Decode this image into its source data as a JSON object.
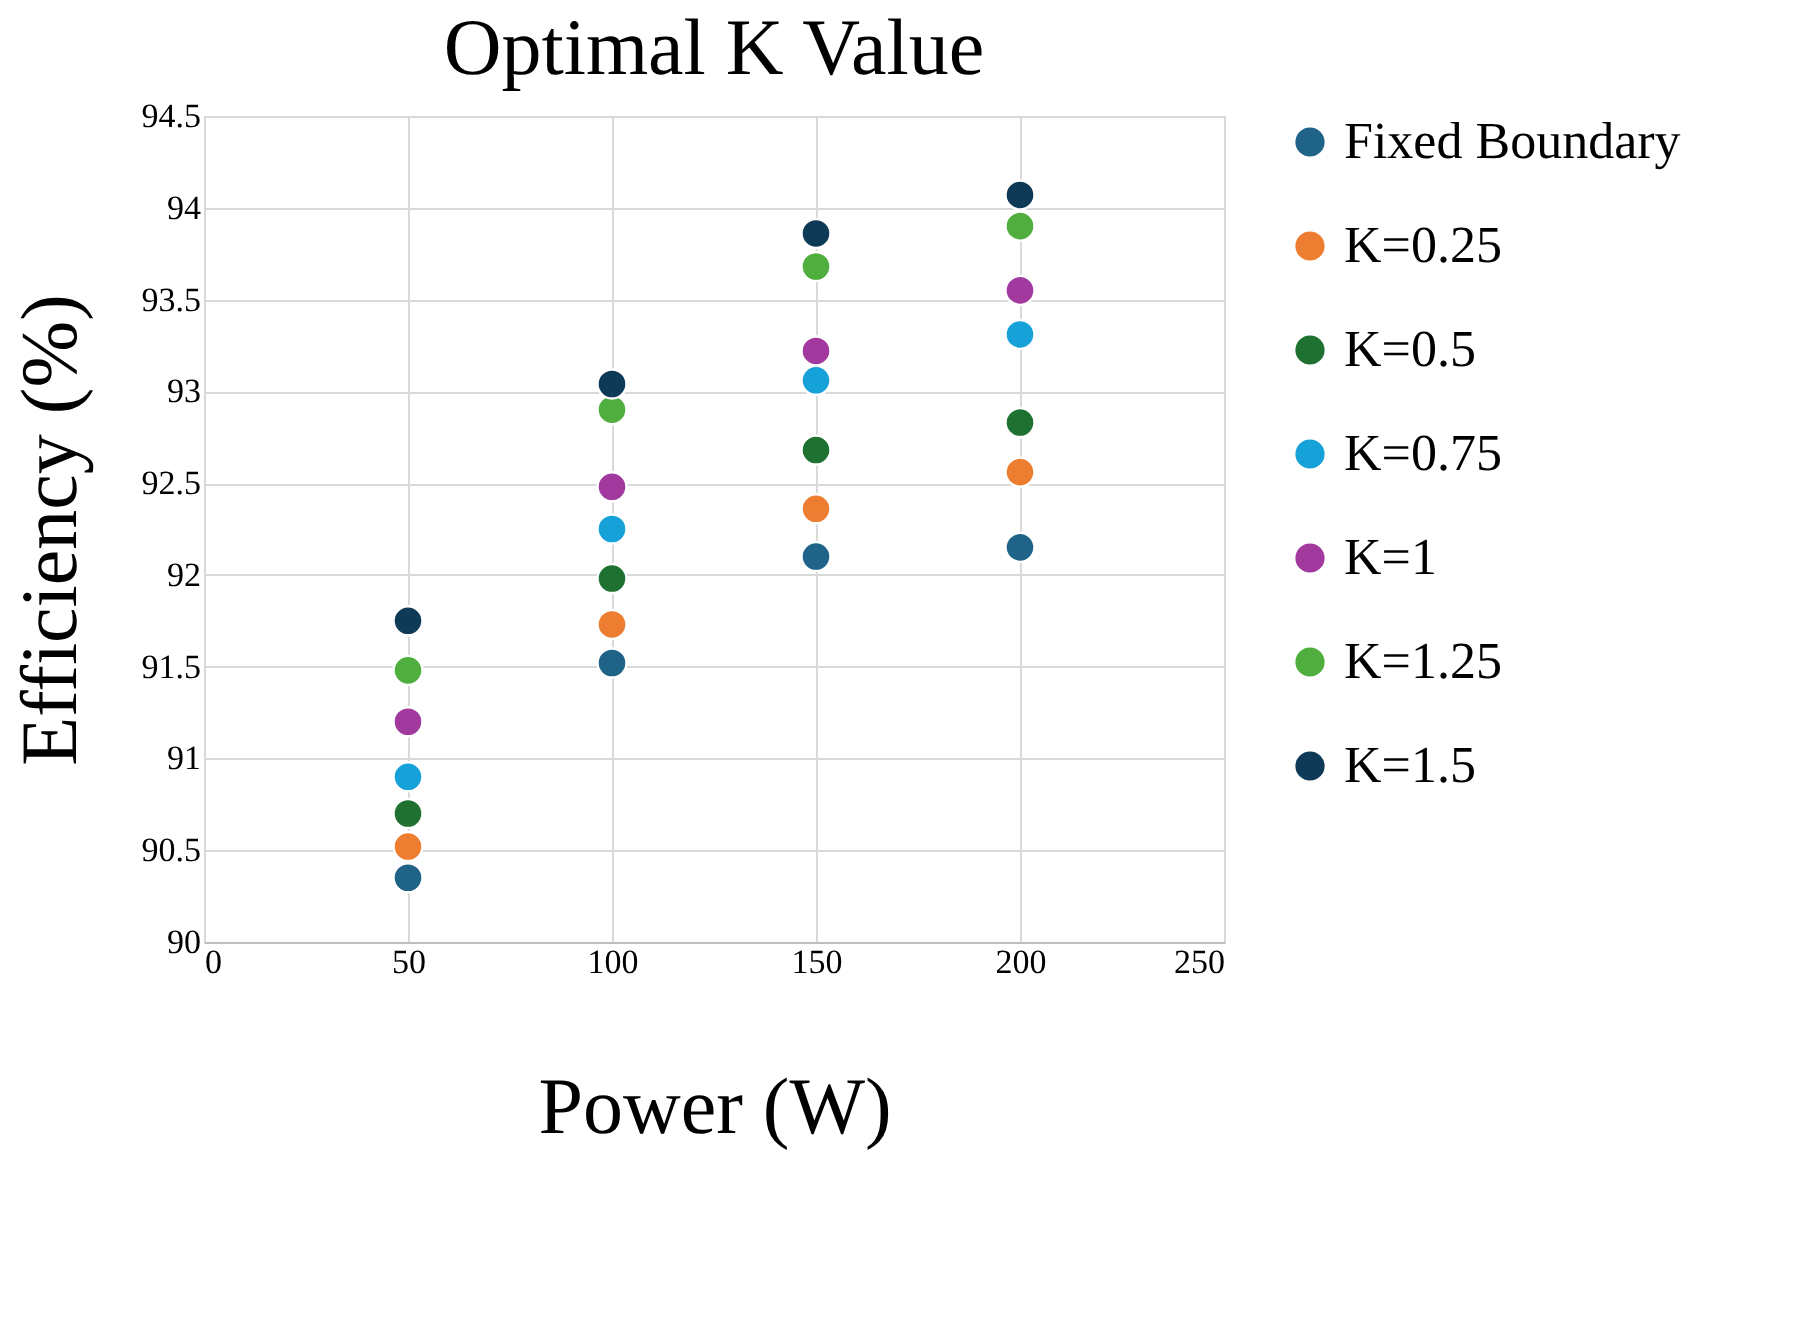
{
  "chart_data": {
    "type": "scatter",
    "title": "Optimal K Value",
    "xlabel": "Power (W)",
    "ylabel": "Efficiency (%)",
    "x": [
      50,
      100,
      150,
      200
    ],
    "series": [
      {
        "name": "Fixed Boundary",
        "color": "#1f6389",
        "values": [
          90.35,
          91.52,
          92.1,
          92.15
        ]
      },
      {
        "name": "K=0.25",
        "color": "#ed7d31",
        "values": [
          90.52,
          91.73,
          92.36,
          92.56
        ]
      },
      {
        "name": "K=0.5",
        "color": "#1e7130",
        "values": [
          90.7,
          91.98,
          92.68,
          92.83
        ]
      },
      {
        "name": "K=0.75",
        "color": "#17a1d9",
        "values": [
          90.9,
          92.25,
          93.06,
          93.31
        ]
      },
      {
        "name": "K=1",
        "color": "#a2399f",
        "values": [
          91.2,
          92.48,
          93.22,
          93.55
        ]
      },
      {
        "name": "K=1.25",
        "color": "#4fae3d",
        "values": [
          91.48,
          92.9,
          93.68,
          93.9
        ]
      },
      {
        "name": "K=1.5",
        "color": "#0f3a57",
        "values": [
          91.75,
          93.04,
          93.86,
          94.07
        ]
      }
    ],
    "xlim": [
      0,
      250
    ],
    "xticks": [
      0,
      50,
      100,
      150,
      200,
      250
    ],
    "ylim": [
      90,
      94.5
    ],
    "yticks": [
      90,
      90.5,
      91,
      91.5,
      92,
      92.5,
      93,
      93.5,
      94,
      94.5
    ],
    "grid": true,
    "legend": "right",
    "marker": "circle"
  }
}
